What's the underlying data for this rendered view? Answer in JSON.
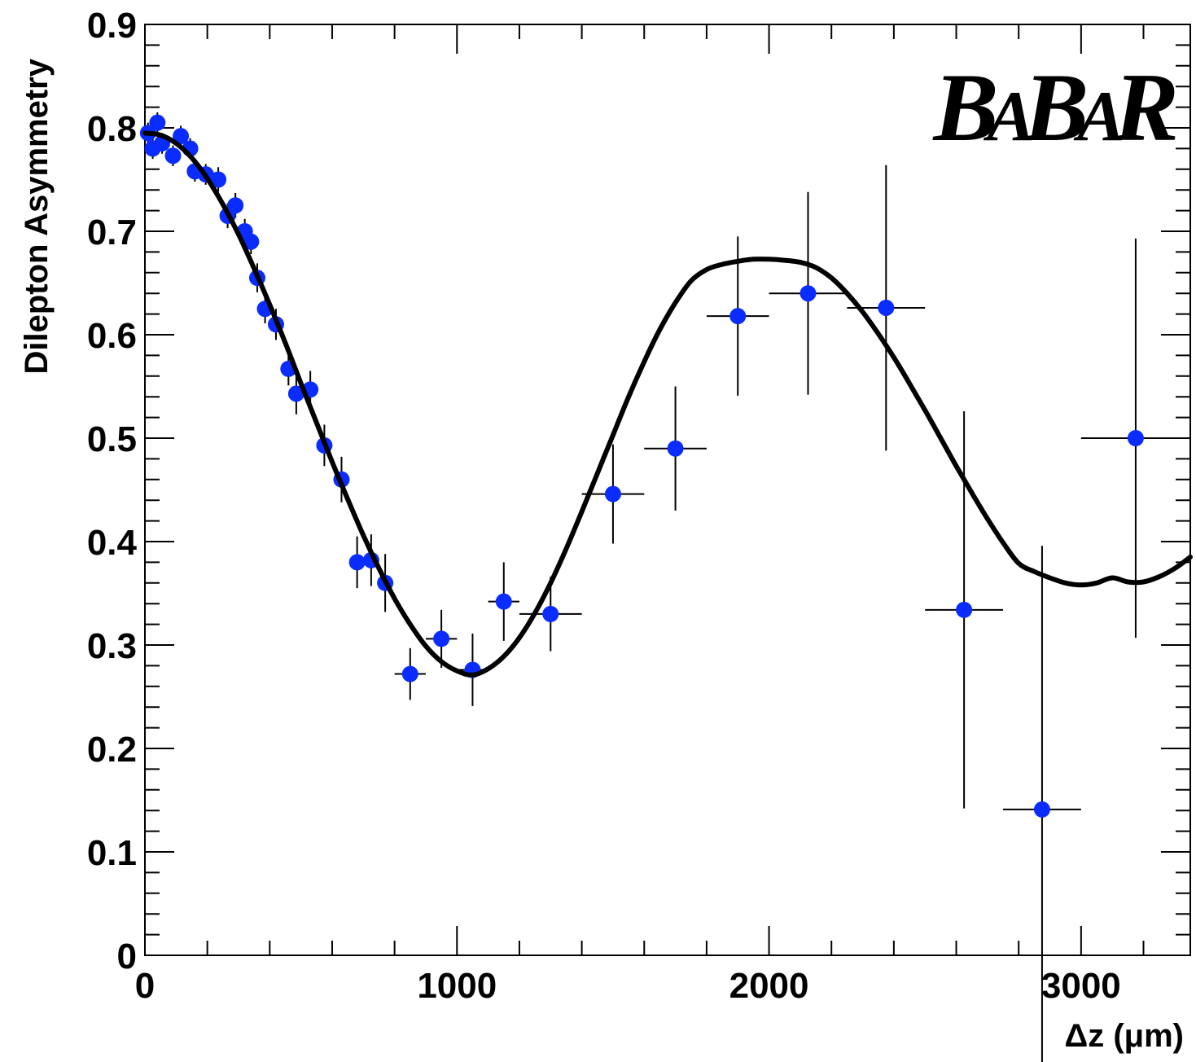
{
  "chart_data": {
    "type": "scatter",
    "title": "",
    "xlabel": "Δz (μm)",
    "ylabel": "Dilepton Asymmetry",
    "xlim": [
      0,
      3350
    ],
    "ylim": [
      0,
      0.9
    ],
    "x_ticks": [
      0,
      1000,
      2000,
      3000
    ],
    "x_tick_labels": [
      "0",
      "1000",
      "2000",
      "3000"
    ],
    "y_ticks": [
      0,
      0.1,
      0.2,
      0.3,
      0.4,
      0.5,
      0.6,
      0.7,
      0.8,
      0.9
    ],
    "y_tick_labels": [
      "0",
      "0.1",
      "0.2",
      "0.3",
      "0.4",
      "0.5",
      "0.6",
      "0.7",
      "0.8",
      "0.9"
    ],
    "grid": false,
    "logo": {
      "text_main": "BABAR",
      "position": "top-right"
    },
    "colors": {
      "points": "#0a2cff",
      "fit": "#000000",
      "errors": "#000000"
    },
    "series": [
      {
        "kind": "points",
        "points": [
          {
            "x": 10,
            "y": 0.795,
            "ey": 0.01,
            "ex": 10
          },
          {
            "x": 25,
            "y": 0.78,
            "ey": 0.01,
            "ex": 10
          },
          {
            "x": 40,
            "y": 0.805,
            "ey": 0.01,
            "ex": 10
          },
          {
            "x": 55,
            "y": 0.785,
            "ey": 0.01,
            "ex": 10
          },
          {
            "x": 90,
            "y": 0.773,
            "ey": 0.01,
            "ex": 15
          },
          {
            "x": 115,
            "y": 0.792,
            "ey": 0.01,
            "ex": 15
          },
          {
            "x": 145,
            "y": 0.78,
            "ey": 0.01,
            "ex": 15
          },
          {
            "x": 160,
            "y": 0.758,
            "ey": 0.01,
            "ex": 15
          },
          {
            "x": 195,
            "y": 0.755,
            "ey": 0.01,
            "ex": 15
          },
          {
            "x": 235,
            "y": 0.75,
            "ey": 0.012,
            "ex": 15
          },
          {
            "x": 265,
            "y": 0.715,
            "ey": 0.012,
            "ex": 15
          },
          {
            "x": 290,
            "y": 0.725,
            "ey": 0.012,
            "ex": 15
          },
          {
            "x": 320,
            "y": 0.7,
            "ey": 0.012,
            "ex": 15
          },
          {
            "x": 340,
            "y": 0.69,
            "ey": 0.012,
            "ex": 15
          },
          {
            "x": 360,
            "y": 0.655,
            "ey": 0.014,
            "ex": 15
          },
          {
            "x": 385,
            "y": 0.625,
            "ey": 0.014,
            "ex": 15
          },
          {
            "x": 420,
            "y": 0.61,
            "ey": 0.015,
            "ex": 15
          },
          {
            "x": 460,
            "y": 0.567,
            "ey": 0.016,
            "ex": 15
          },
          {
            "x": 485,
            "y": 0.543,
            "ey": 0.02,
            "ex": 15
          },
          {
            "x": 530,
            "y": 0.547,
            "ey": 0.018,
            "ex": 15
          },
          {
            "x": 575,
            "y": 0.493,
            "ey": 0.02,
            "ex": 20
          },
          {
            "x": 630,
            "y": 0.46,
            "ey": 0.022,
            "ex": 20
          },
          {
            "x": 680,
            "y": 0.38,
            "ey": 0.025,
            "ex": 20
          },
          {
            "x": 725,
            "y": 0.382,
            "ey": 0.025,
            "ex": 20
          },
          {
            "x": 770,
            "y": 0.36,
            "ey": 0.028,
            "ex": 20
          },
          {
            "x": 850,
            "y": 0.272,
            "ey": 0.025,
            "ex": 50
          },
          {
            "x": 950,
            "y": 0.306,
            "ey": 0.028,
            "ex": 50
          },
          {
            "x": 1050,
            "y": 0.276,
            "ey": 0.035,
            "ex": 50
          },
          {
            "x": 1150,
            "y": 0.342,
            "ey": 0.038,
            "ex": 50
          },
          {
            "x": 1300,
            "y": 0.33,
            "ey": 0.036,
            "ex": 100
          },
          {
            "x": 1500,
            "y": 0.446,
            "ey": 0.048,
            "ex": 100
          },
          {
            "x": 1700,
            "y": 0.49,
            "ey": 0.06,
            "ex": 100
          },
          {
            "x": 1900,
            "y": 0.618,
            "ey": 0.077,
            "ex": 100
          },
          {
            "x": 2125,
            "y": 0.64,
            "ey": 0.098,
            "ex": 125
          },
          {
            "x": 2375,
            "y": 0.626,
            "ey": 0.138,
            "ex": 125
          },
          {
            "x": 2625,
            "y": 0.334,
            "ey": 0.192,
            "ex": 125
          },
          {
            "x": 2875,
            "y": 0.141,
            "ey": 0.255,
            "ex": 125
          },
          {
            "x": 3175,
            "y": 0.5,
            "ey": 0.193,
            "ex": 175
          }
        ]
      },
      {
        "kind": "fit-curve",
        "x": [
          0,
          50,
          100,
          150,
          200,
          250,
          300,
          350,
          400,
          450,
          500,
          550,
          600,
          650,
          700,
          750,
          800,
          850,
          900,
          950,
          1000,
          1050,
          1100,
          1150,
          1200,
          1250,
          1300,
          1350,
          1400,
          1450,
          1500,
          1550,
          1600,
          1650,
          1700,
          1750,
          1800,
          1850,
          1900,
          1950,
          2000,
          2050,
          2100,
          2150,
          2200,
          2250,
          2300,
          2350,
          2400,
          2450,
          2500,
          2550,
          2600,
          2650,
          2700,
          2750,
          2800,
          2850,
          2900,
          2950,
          3000,
          3050,
          3100,
          3150,
          3200,
          3250,
          3300,
          3350
        ],
        "y": [
          0.795,
          0.793,
          0.785,
          0.771,
          0.751,
          0.726,
          0.697,
          0.664,
          0.629,
          0.592,
          0.553,
          0.515,
          0.477,
          0.441,
          0.406,
          0.374,
          0.345,
          0.32,
          0.299,
          0.284,
          0.275,
          0.271,
          0.277,
          0.289,
          0.307,
          0.331,
          0.36,
          0.393,
          0.429,
          0.466,
          0.503,
          0.54,
          0.574,
          0.605,
          0.631,
          0.652,
          0.663,
          0.668,
          0.671,
          0.673,
          0.673,
          0.672,
          0.67,
          0.665,
          0.655,
          0.64,
          0.622,
          0.601,
          0.578,
          0.553,
          0.527,
          0.5,
          0.473,
          0.447,
          0.422,
          0.399,
          0.379,
          0.371,
          0.365,
          0.36,
          0.358,
          0.36,
          0.365,
          0.361,
          0.361,
          0.366,
          0.374,
          0.385
        ]
      }
    ]
  }
}
